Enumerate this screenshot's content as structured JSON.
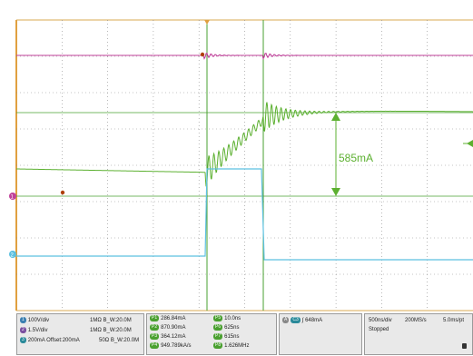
{
  "annotation": {
    "delta_label": "585mA"
  },
  "channels": [
    {
      "id": "1",
      "scale": "100V/div",
      "coupling": "1MΩ",
      "bw": "B_W:20.0M",
      "color": "#3a7fb0"
    },
    {
      "id": "2",
      "scale": "1.5V/div",
      "coupling": "1MΩ",
      "bw": "B_W:20.0M",
      "color": "#7a4fa0"
    },
    {
      "id": "3",
      "scale": "200mA",
      "offset": "Offset:200mA",
      "coupling": "50Ω",
      "bw": "B_W:20.0M",
      "color": "#2a8a9a"
    }
  ],
  "measurements_left": [
    {
      "id": "P1",
      "value": "286.84mA"
    },
    {
      "id": "P2",
      "value": "870.90mA"
    },
    {
      "id": "P3",
      "value": "364.12mA"
    },
    {
      "id": "P4",
      "value": "949.789kA/s"
    }
  ],
  "measurements_right": [
    {
      "id": "P5",
      "value": "10.0ns"
    },
    {
      "id": "P6",
      "value": "625ns"
    },
    {
      "id": "P7",
      "value": "615ns"
    },
    {
      "id": "P8",
      "value": "1.626MHz"
    }
  ],
  "trigger": {
    "channel": "C3",
    "level": "648mA"
  },
  "timebase": {
    "scale": "500ns/div",
    "sample_rate": "200MS/s",
    "record": "5.0ms/pt",
    "status": "Stopped"
  },
  "colors": {
    "ch_magenta": "#c0409a",
    "ch_green": "#5cb030",
    "ch_cyan": "#5cc0e0",
    "grid": "#8a8a8a",
    "cursor": "#4aa030",
    "border": "#e0a040"
  }
}
